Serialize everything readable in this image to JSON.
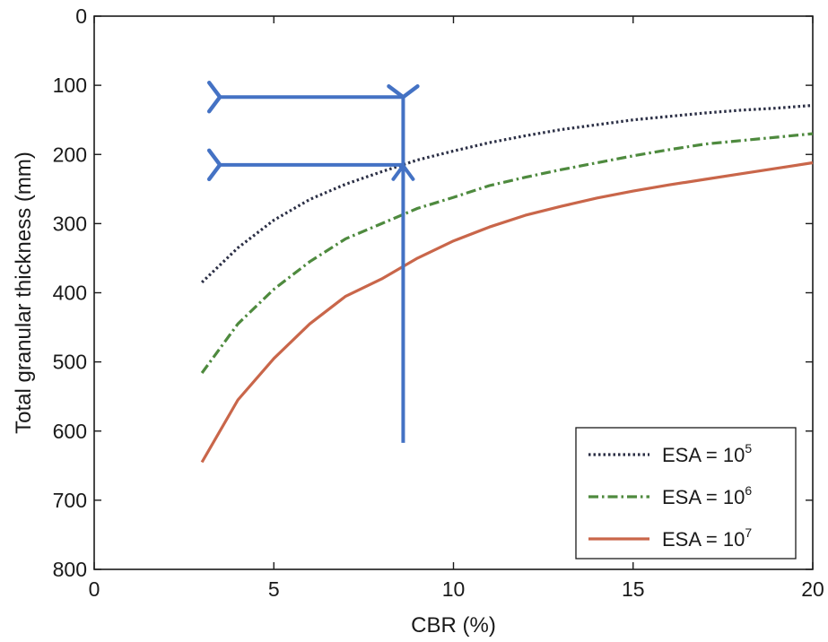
{
  "chart_data": {
    "type": "line",
    "xlabel": "CBR (%)",
    "ylabel": "Total granular thickness (mm)",
    "xlim": [
      0,
      20
    ],
    "ylim": [
      0,
      800
    ],
    "y_inverted": true,
    "x_ticks": [
      0,
      5,
      10,
      15,
      20
    ],
    "y_ticks": [
      0,
      100,
      200,
      300,
      400,
      500,
      600,
      700,
      800
    ],
    "grid": false,
    "legend_position": "bottom-right",
    "series": [
      {
        "name": "ESA = 10",
        "name_sup": "5",
        "line_style": "dotted",
        "color": "#2b2f45",
        "x": [
          3,
          4,
          5,
          6,
          7,
          8,
          9,
          10,
          11,
          12,
          13,
          14,
          15,
          16,
          17,
          18,
          19,
          20
        ],
        "y": [
          385,
          335,
          295,
          265,
          243,
          225,
          208,
          195,
          183,
          173,
          164,
          157,
          150,
          145,
          140,
          136,
          133,
          129
        ]
      },
      {
        "name": "ESA = 10",
        "name_sup": "6",
        "line_style": "dashdot",
        "color": "#4e8a3e",
        "x": [
          3,
          4,
          5,
          6,
          7,
          8,
          9,
          10,
          11,
          12,
          13,
          14,
          15,
          16,
          17,
          18,
          19,
          20
        ],
        "y": [
          516,
          445,
          395,
          355,
          322,
          300,
          278,
          262,
          245,
          233,
          222,
          212,
          202,
          193,
          185,
          180,
          175,
          170
        ]
      },
      {
        "name": "ESA = 10",
        "name_sup": "7",
        "line_style": "solid",
        "color": "#c9664a",
        "x": [
          3,
          4,
          5,
          6,
          7,
          8,
          9,
          10,
          11,
          12,
          13,
          14,
          15,
          16,
          17,
          18,
          19,
          20
        ],
        "y": [
          645,
          555,
          495,
          445,
          405,
          380,
          350,
          325,
          305,
          288,
          275,
          263,
          253,
          244,
          236,
          228,
          220,
          212
        ]
      }
    ],
    "annotations": {
      "color": "#4472c4",
      "vertical_arrow": {
        "x": 8.6,
        "y_from": 617,
        "y_to": 117
      },
      "horizontal_arrows": [
        {
          "y": 117,
          "x_from": 8.6,
          "x_to": 3.5
        },
        {
          "y": 215,
          "x_from": 8.6,
          "x_to": 3.5
        }
      ]
    }
  }
}
